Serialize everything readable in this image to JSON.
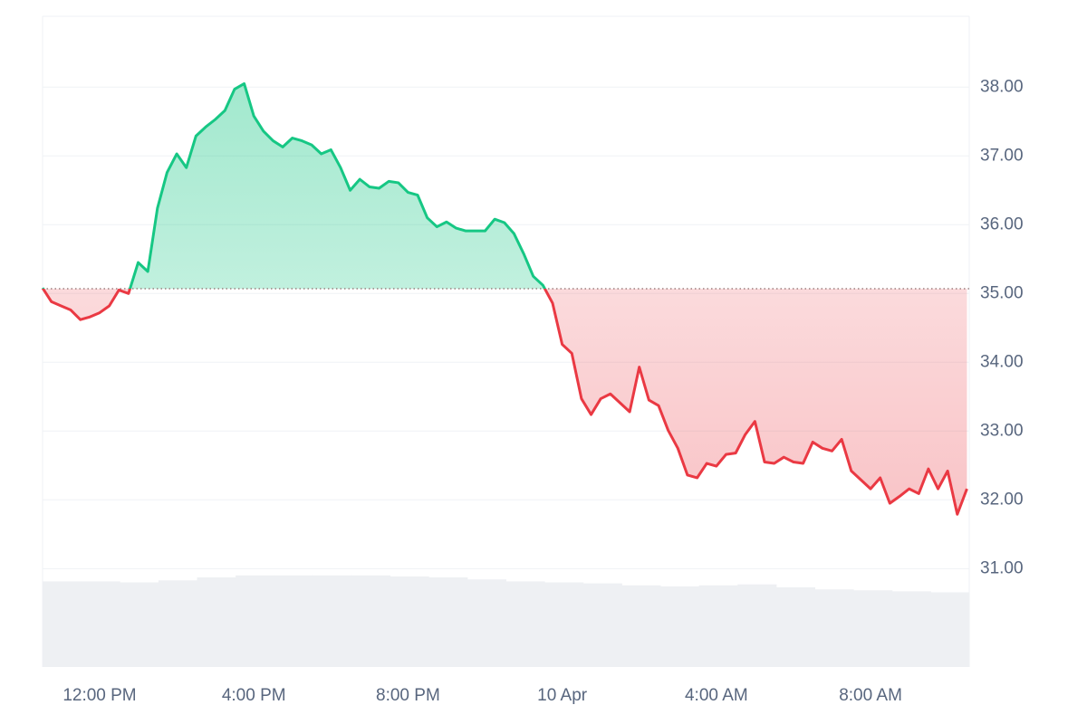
{
  "chart_data": {
    "type": "line",
    "x": [
      10.52,
      10.75,
      11,
      11.25,
      11.5,
      11.75,
      12,
      12.25,
      12.5,
      12.75,
      13,
      13.25,
      13.5,
      13.75,
      14,
      14.25,
      14.5,
      14.75,
      15,
      15.25,
      15.5,
      15.75,
      16,
      16.25,
      16.5,
      16.75,
      17,
      17.25,
      17.5,
      17.75,
      18,
      18.25,
      18.5,
      18.75,
      19,
      19.25,
      19.5,
      19.75,
      20,
      20.25,
      20.5,
      20.75,
      21,
      21.25,
      21.5,
      21.75,
      22,
      22.25,
      22.5,
      22.75,
      23,
      23.25,
      23.5,
      23.75,
      24,
      24.25,
      24.5,
      24.75,
      25,
      25.25,
      25.5,
      25.75,
      26,
      26.25,
      26.5,
      26.75,
      27,
      27.25,
      27.5,
      27.75,
      28,
      28.25,
      28.5,
      28.75,
      29,
      29.25,
      29.5,
      29.75,
      30,
      30.25,
      30.5,
      30.75,
      31,
      31.25,
      31.5,
      31.75,
      32,
      32.25,
      32.5,
      32.75,
      33,
      33.25,
      33.5,
      33.75,
      34,
      34.25,
      34.5
    ],
    "series": [
      {
        "up_color": "#16c784",
        "down_color": "#ea3943",
        "values": [
          35.08,
          34.88,
          34.82,
          34.76,
          34.62,
          34.66,
          34.72,
          34.82,
          35.05,
          35.0,
          35.45,
          35.32,
          36.24,
          36.76,
          37.03,
          36.83,
          37.29,
          37.42,
          37.53,
          37.66,
          37.97,
          38.05,
          37.58,
          37.36,
          37.22,
          37.13,
          37.26,
          37.22,
          37.16,
          37.03,
          37.09,
          36.83,
          36.5,
          36.66,
          36.55,
          36.53,
          36.63,
          36.61,
          36.47,
          36.43,
          36.1,
          35.97,
          36.04,
          35.95,
          35.91,
          35.91,
          35.91,
          36.08,
          36.03,
          35.87,
          35.58,
          35.25,
          35.12,
          34.86,
          34.26,
          34.13,
          33.47,
          33.24,
          33.47,
          33.54,
          33.41,
          33.28,
          33.93,
          33.45,
          33.37,
          33.01,
          32.75,
          32.36,
          32.32,
          32.53,
          32.49,
          32.66,
          32.68,
          32.95,
          33.14,
          32.55,
          32.53,
          32.62,
          32.55,
          32.53,
          32.84,
          32.75,
          32.71,
          32.88,
          32.42,
          32.29,
          32.16,
          32.32,
          31.95,
          32.05,
          32.16,
          32.09,
          32.45,
          32.16,
          32.42,
          31.79,
          32.16
        ]
      }
    ],
    "baseline": 35.07,
    "volume": {
      "color": "#eef0f3",
      "values": [
        86,
        86,
        85,
        87,
        90,
        92,
        92,
        92,
        92,
        91,
        90,
        88,
        86,
        85,
        84,
        82,
        81,
        82,
        83,
        80,
        78,
        77,
        76,
        75
      ],
      "vlim": [
        0,
        100
      ]
    },
    "xlim": [
      10.52,
      34.56
    ],
    "xticks": [
      {
        "value": 12,
        "label": "12:00 PM"
      },
      {
        "value": 16,
        "label": "4:00 PM"
      },
      {
        "value": 20,
        "label": "8:00 PM"
      },
      {
        "value": 24,
        "label": "10 Apr"
      },
      {
        "value": 28,
        "label": "4:00 AM"
      },
      {
        "value": 32,
        "label": "8:00 AM"
      }
    ],
    "ylim": [
      29.57,
      39.03
    ],
    "yticks": [
      {
        "value": 31,
        "label": "31.00"
      },
      {
        "value": 32,
        "label": "32.00"
      },
      {
        "value": 33,
        "label": "33.00"
      },
      {
        "value": 34,
        "label": "34.00"
      },
      {
        "value": 35,
        "label": "35.00"
      },
      {
        "value": 36,
        "label": "36.00"
      },
      {
        "value": 37,
        "label": "37.00"
      },
      {
        "value": 38,
        "label": "38.00"
      }
    ],
    "grid": true
  }
}
